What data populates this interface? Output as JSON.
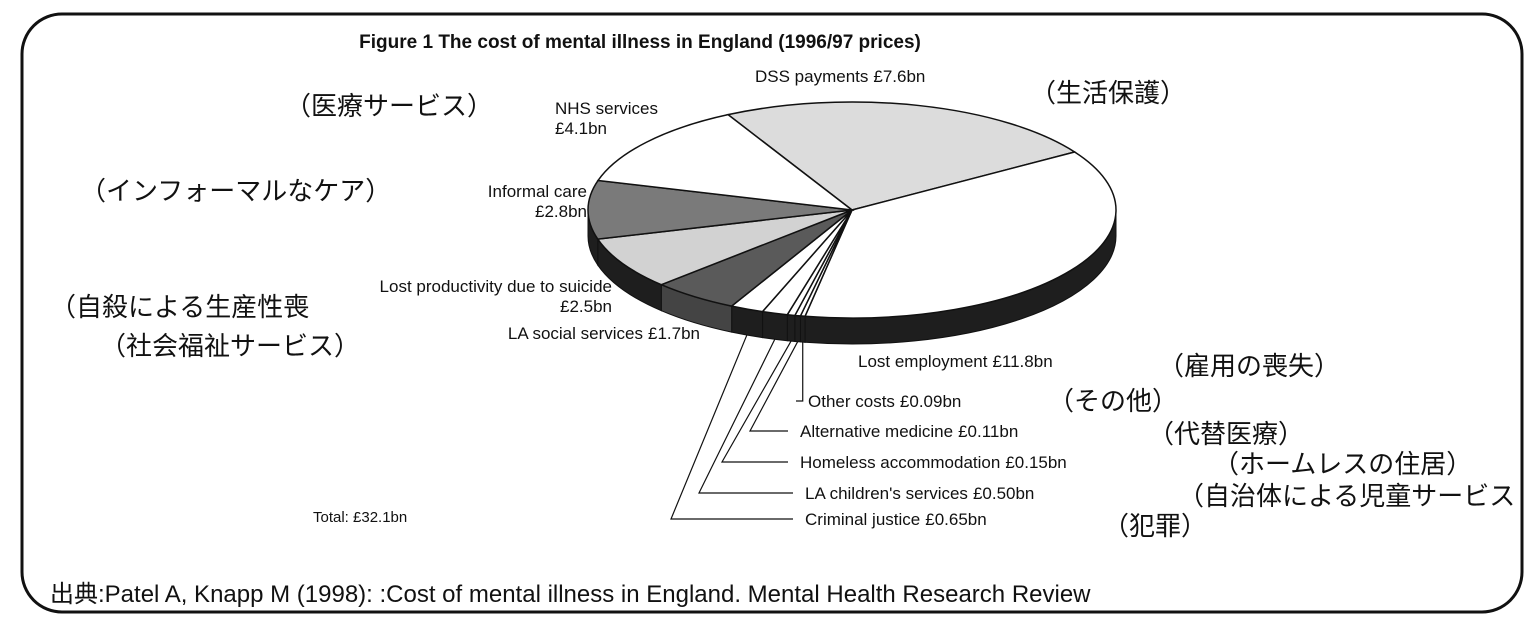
{
  "chart_data": {
    "type": "pie",
    "title": "Figure 1  The cost of mental illness in England (1996/97 prices)",
    "categories": [
      "DSS payments",
      "Lost employment",
      "Other costs",
      "Alternative medicine",
      "Homeless accommodation",
      "LA children's services",
      "Criminal justice",
      "LA social services",
      "Lost productivity due to suicide",
      "Informal care",
      "NHS services"
    ],
    "values": [
      7.6,
      11.8,
      0.09,
      0.11,
      0.15,
      0.5,
      0.65,
      1.7,
      2.5,
      2.8,
      4.1
    ],
    "value_labels": [
      "£7.6bn",
      "£11.8bn",
      "£0.09bn",
      "£0.11bn",
      "£0.15bn",
      "£0.50bn",
      "£0.65bn",
      "£1.7bn",
      "£2.5bn",
      "£2.8bn",
      "£4.1bn"
    ],
    "colors": [
      "#dcdcdc",
      "#ffffff",
      "#ffffff",
      "#ffffff",
      "#ffffff",
      "#ffffff",
      "#ffffff",
      "#5a5a5a",
      "#d2d2d2",
      "#7a7a7a",
      "#ffffff"
    ],
    "annotations": [
      "（生活保護）",
      "（雇用の喪失）",
      "（その他）",
      "（代替医療）",
      "（ホームレスの住居）",
      "（自治体による児童サービス",
      "（犯罪）",
      "（社会福祉サービス）",
      "（自殺による生産性喪",
      "（インフォーマルなケア）",
      "（医療サービス）"
    ],
    "total_label": "Total: £32.1bn",
    "source": "出典:Patel A, Knapp M (1998): :Cost of mental illness in England. Mental Health Research Review"
  }
}
